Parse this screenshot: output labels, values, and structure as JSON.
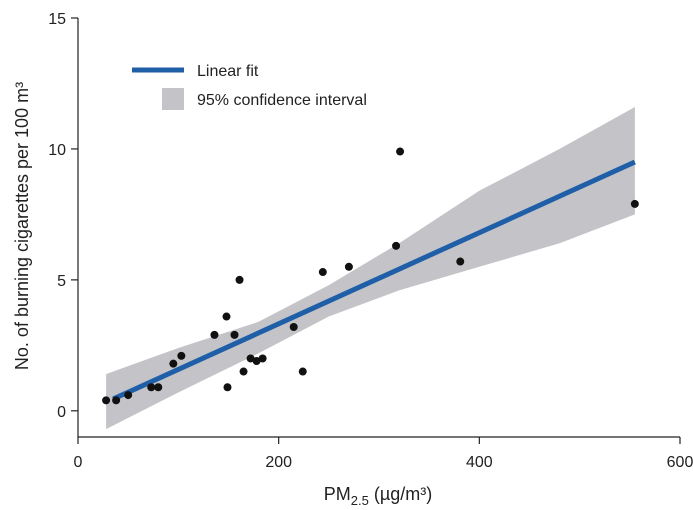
{
  "chart_data": {
    "type": "scatter",
    "xlabel": "PM2.5 (µg/m³)",
    "xlabel_main": "PM",
    "xlabel_sub": "2.5",
    "xlabel_unit": " (µg/m³)",
    "ylabel": "No. of burning cigarettes per 100 m³",
    "xlim": [
      0,
      600
    ],
    "ylim": [
      -1,
      15
    ],
    "xticks": [
      "0",
      "200",
      "400",
      "600"
    ],
    "yticks": [
      "0",
      "5",
      "10",
      "15"
    ],
    "grid": false,
    "legend_position": "top-left",
    "legend": [
      {
        "label": "Linear fit",
        "kind": "line",
        "color": "#1f5fa8"
      },
      {
        "label": "95% confidence interval",
        "kind": "band",
        "color": "#c4c4c8"
      }
    ],
    "points": [
      {
        "x": 28,
        "y": 0.4
      },
      {
        "x": 38,
        "y": 0.4
      },
      {
        "x": 50,
        "y": 0.6
      },
      {
        "x": 73,
        "y": 0.9
      },
      {
        "x": 80,
        "y": 0.9
      },
      {
        "x": 95,
        "y": 1.8
      },
      {
        "x": 103,
        "y": 2.1
      },
      {
        "x": 136,
        "y": 2.9
      },
      {
        "x": 148,
        "y": 3.6
      },
      {
        "x": 149,
        "y": 0.9
      },
      {
        "x": 156,
        "y": 2.9
      },
      {
        "x": 161,
        "y": 5.0
      },
      {
        "x": 165,
        "y": 1.5
      },
      {
        "x": 172,
        "y": 2.0
      },
      {
        "x": 178,
        "y": 1.9
      },
      {
        "x": 184,
        "y": 2.0
      },
      {
        "x": 215,
        "y": 3.2
      },
      {
        "x": 224,
        "y": 1.5
      },
      {
        "x": 244,
        "y": 5.3
      },
      {
        "x": 270,
        "y": 5.5
      },
      {
        "x": 317,
        "y": 6.3
      },
      {
        "x": 321,
        "y": 9.9
      },
      {
        "x": 381,
        "y": 5.7
      },
      {
        "x": 555,
        "y": 7.9
      }
    ],
    "fit": {
      "x": [
        35,
        555
      ],
      "y": [
        0.45,
        9.5
      ]
    },
    "ci_upper": [
      {
        "x": 28,
        "y": 1.4
      },
      {
        "x": 100,
        "y": 2.4
      },
      {
        "x": 180,
        "y": 3.4
      },
      {
        "x": 250,
        "y": 4.8
      },
      {
        "x": 320,
        "y": 6.4
      },
      {
        "x": 400,
        "y": 8.4
      },
      {
        "x": 480,
        "y": 10.0
      },
      {
        "x": 555,
        "y": 11.6
      }
    ],
    "ci_lower": [
      {
        "x": 555,
        "y": 7.5
      },
      {
        "x": 480,
        "y": 6.4
      },
      {
        "x": 400,
        "y": 5.5
      },
      {
        "x": 320,
        "y": 4.6
      },
      {
        "x": 250,
        "y": 3.6
      },
      {
        "x": 180,
        "y": 2.2
      },
      {
        "x": 100,
        "y": 0.7
      },
      {
        "x": 28,
        "y": -0.7
      }
    ],
    "colors": {
      "fit": "#1f5fa8",
      "band": "#c4c4c8",
      "points": "#111111",
      "axis": "#222222"
    }
  }
}
